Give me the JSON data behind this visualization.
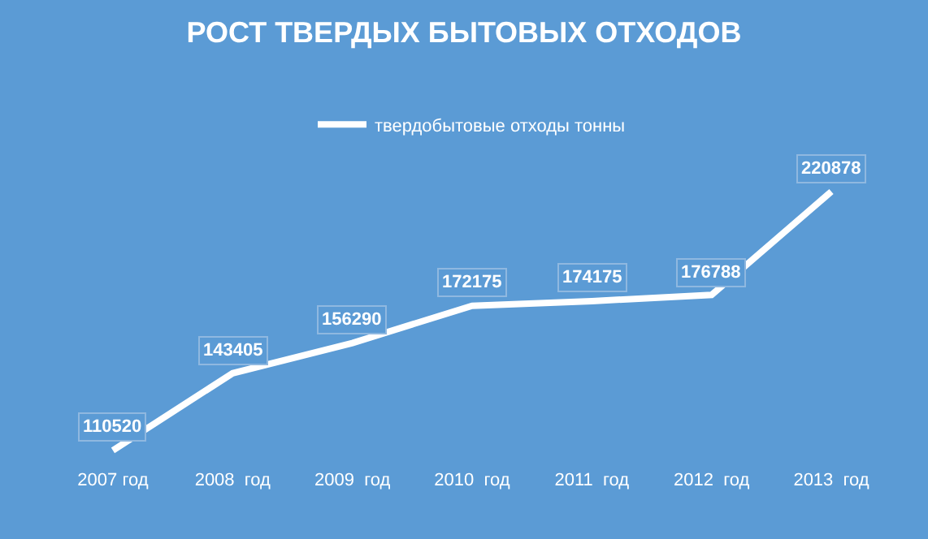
{
  "chart_data": {
    "type": "line",
    "title": "РОСТ ТВЕРДЫХ БЫТОВЫХ ОТХОДОВ",
    "categories": [
      "2007 год",
      "2008  год",
      "2009  год",
      "2010  год",
      "2011  год",
      "2012  год",
      "2013  год"
    ],
    "series": [
      {
        "name": "твердобытовые отходы тонны",
        "color": "#ffffff",
        "values": [
          110520,
          143405,
          156290,
          172175,
          174175,
          176788,
          220878
        ]
      }
    ],
    "data_labels": true,
    "legend": "top",
    "marker": "none",
    "line_style": "solid",
    "grid": false
  }
}
